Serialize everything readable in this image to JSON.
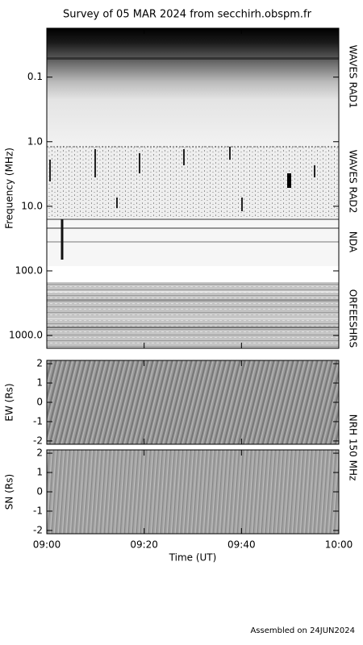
{
  "chart_data": [
    {
      "type": "spectrogram",
      "title": "Survey of 05 MAR 2024 from secchirh.obspm.fr",
      "ylabel": "Frequency (MHz)",
      "log_scale": true,
      "ylim": [
        1580,
        0.0175
      ],
      "yticks": [
        0.1,
        {
          "value": 1,
          "label": "1.0"
        },
        {
          "value": 10,
          "label": "10.0"
        },
        {
          "value": 100,
          "label": "100.0"
        },
        {
          "value": 1000,
          "label": "1000.0"
        }
      ],
      "instruments": [
        "WAVES RAD1",
        "WAVES RAD2",
        "NDA",
        "ORFEESHRS"
      ]
    },
    {
      "type": "image",
      "ylabel": "EW (Rs)",
      "ylim": [
        -2.17,
        2.17
      ],
      "yticks": [
        -2,
        -1,
        0,
        1,
        2
      ],
      "side_label": "NRH 150 MHz"
    },
    {
      "type": "image",
      "ylabel": "SN (Rs)",
      "ylim": [
        -2.17,
        2.17
      ],
      "yticks": [
        -2,
        -1,
        0,
        1,
        2
      ],
      "xlabel": "Time (UT)",
      "xlim": [
        "09:00",
        "10:00"
      ],
      "xticks": [
        "09:00",
        "09:20",
        "09:40",
        "10:00"
      ]
    }
  ],
  "footer": "Assembled on 24JUN2024"
}
